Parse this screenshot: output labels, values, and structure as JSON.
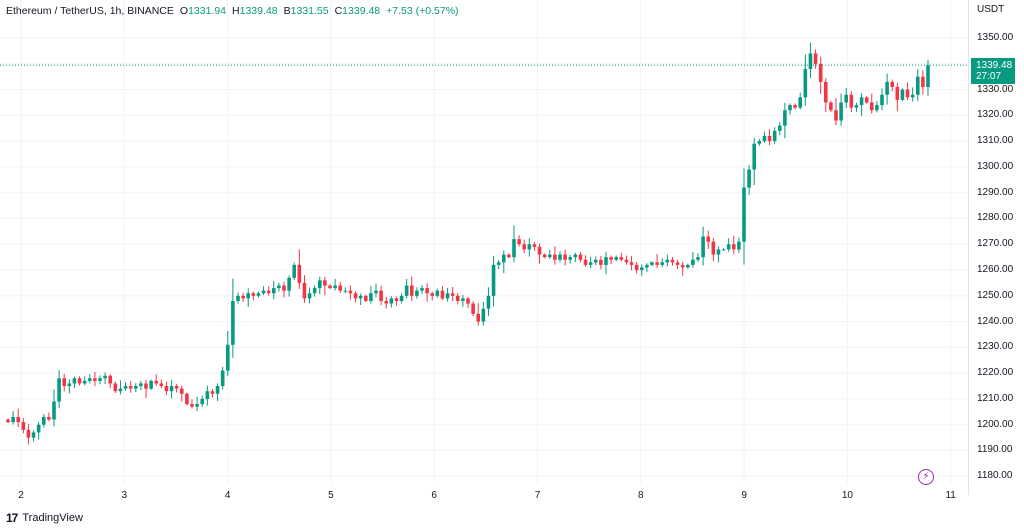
{
  "legend": {
    "symbol": "Ethereum / TetherUS, 1h, BINANCE",
    "o_label": "O",
    "o_value": "1331.94",
    "h_label": "H",
    "h_value": "1339.48",
    "b_label": "B",
    "b_value": "1331.55",
    "c_label": "C",
    "c_value": "1339.48",
    "change": "+7.53 (+0.57%)"
  },
  "axis": {
    "currency": "USDT"
  },
  "price_tag": {
    "price": "1339.48",
    "countdown": "27:07"
  },
  "brand": {
    "logo": "17",
    "name": "TradingView"
  },
  "colors": {
    "up": "#089981",
    "down": "#f23645",
    "grid": "#f0f3fa",
    "accent": "#9c27b0"
  },
  "chart_data": {
    "type": "candlestick",
    "ylim": [
      1177,
      1357
    ],
    "y_ticks": [
      1180,
      1190,
      1200,
      1210,
      1220,
      1230,
      1240,
      1250,
      1260,
      1270,
      1280,
      1290,
      1300,
      1310,
      1320,
      1330,
      1340,
      1350
    ],
    "y_tick_labels": [
      "1180.00",
      "1190.00",
      "1200.00",
      "1210.00",
      "1220.00",
      "1230.00",
      "1240.00",
      "1250.00",
      "1260.00",
      "1270.00",
      "1280.00",
      "1290.00",
      "1300.00",
      "1310.00",
      "1320.00",
      "1330.00",
      "1340.00",
      "1350.00"
    ],
    "x_ticks": [
      "2",
      "3",
      "4",
      "5",
      "6",
      "7",
      "8",
      "9",
      "10",
      "11"
    ],
    "last_price": 1339.48,
    "grid": true,
    "close_series": [
      1201,
      1203,
      1201,
      1198,
      1195,
      1197,
      1200,
      1203,
      1202,
      1209,
      1218,
      1215,
      1216,
      1218,
      1216,
      1217,
      1218,
      1217,
      1218,
      1219,
      1216,
      1213,
      1214,
      1215,
      1214,
      1215,
      1216,
      1214,
      1217,
      1216,
      1215,
      1213,
      1215,
      1214,
      1212,
      1208,
      1207,
      1208,
      1210,
      1213,
      1212,
      1215,
      1221,
      1231,
      1248,
      1250,
      1249,
      1251,
      1250,
      1251,
      1252,
      1251,
      1253,
      1254,
      1252,
      1257,
      1262,
      1255,
      1249,
      1251,
      1253,
      1256,
      1254,
      1253,
      1254,
      1252,
      1252,
      1251,
      1249,
      1250,
      1248,
      1251,
      1252,
      1248,
      1247,
      1249,
      1248,
      1250,
      1254,
      1250,
      1252,
      1253,
      1251,
      1250,
      1252,
      1249,
      1251,
      1250,
      1248,
      1249,
      1247,
      1243,
      1240,
      1245,
      1250,
      1262,
      1263,
      1266,
      1265,
      1272,
      1270,
      1268,
      1270,
      1269,
      1266,
      1265,
      1266,
      1264,
      1266,
      1264,
      1265,
      1266,
      1264,
      1262,
      1263,
      1264,
      1262,
      1265,
      1264,
      1265,
      1264,
      1263,
      1262,
      1260,
      1261,
      1262,
      1263,
      1262,
      1263,
      1264,
      1263,
      1262,
      1261,
      1262,
      1264,
      1265,
      1273,
      1271,
      1266,
      1268,
      1268,
      1270,
      1268,
      1271,
      1292,
      1299,
      1309,
      1310,
      1312,
      1310,
      1314,
      1316,
      1322,
      1324,
      1323,
      1327,
      1338,
      1344,
      1340,
      1333,
      1325,
      1322,
      1318,
      1325,
      1328,
      1323,
      1324,
      1327,
      1325,
      1322,
      1324,
      1328,
      1333,
      1331,
      1326,
      1330,
      1327,
      1328,
      1335,
      1331,
      1339.48
    ]
  }
}
